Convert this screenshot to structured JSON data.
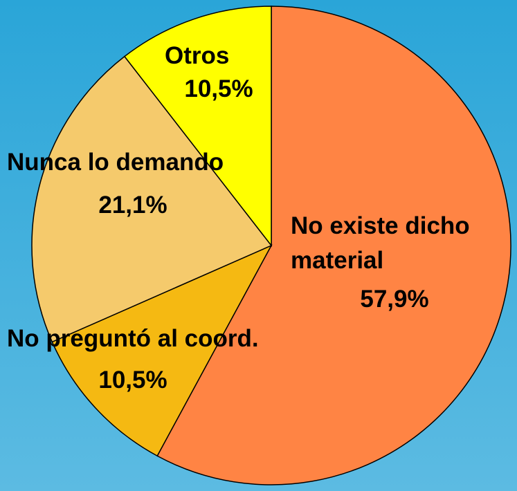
{
  "chart_data": {
    "type": "pie",
    "categories": [
      "No existe dicho material",
      "No preguntó al coord.",
      "Nunca lo demando",
      "Otros"
    ],
    "values": [
      57.9,
      10.5,
      21.1,
      10.5
    ],
    "value_labels": [
      "57,9%",
      "10,5%",
      "21,1%",
      "10,5%"
    ],
    "colors": [
      "#ff8444",
      "#f5b912",
      "#f5ca6c",
      "#ffff00"
    ]
  }
}
